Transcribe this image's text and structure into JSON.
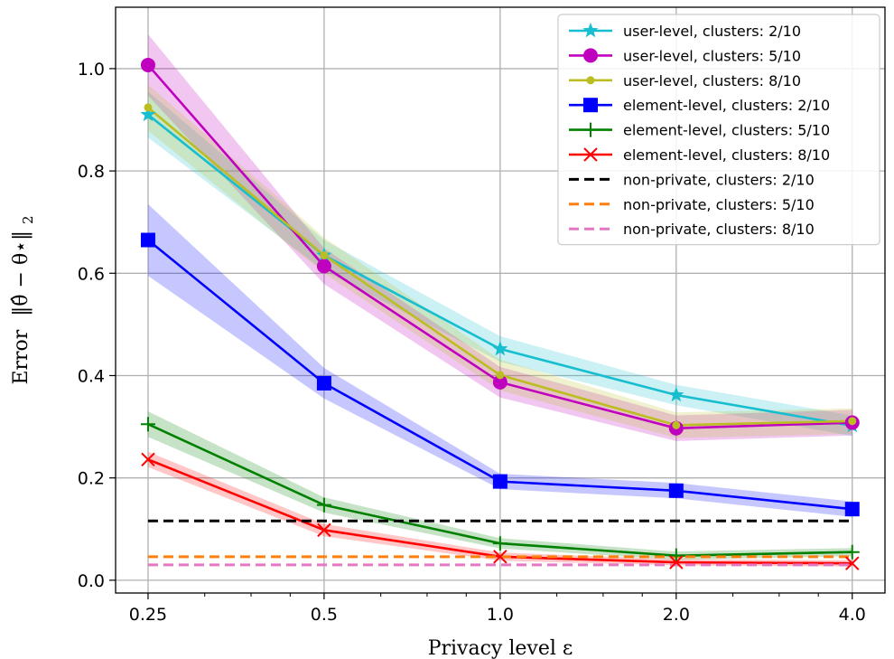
{
  "chart_data": {
    "type": "line",
    "xlabel": "Privacy level ε",
    "ylabel_prefix": "Error",
    "ylabel_formula": "‖θ̂ − θ⋆‖",
    "ylabel_sub": "2",
    "x_scale": "log",
    "x": [
      0.25,
      0.5,
      1.0,
      2.0,
      4.0
    ],
    "x_tick_labels": [
      "0.25",
      "0.5",
      "1.0",
      "2.0",
      "4.0"
    ],
    "xlim": [
      0.22,
      4.55
    ],
    "y_ticks": [
      0.0,
      0.2,
      0.4,
      0.6,
      0.8,
      1.0
    ],
    "y_tick_labels": [
      "0.0",
      "0.2",
      "0.4",
      "0.6",
      "0.8",
      "1.0"
    ],
    "ylim": [
      -0.025,
      1.12
    ],
    "grid": true,
    "legend_position": "top-right",
    "series": [
      {
        "name": "user-level, clusters: 2/10",
        "color": "#17becf",
        "marker": "star",
        "values": [
          0.91,
          0.635,
          0.452,
          0.362,
          0.302
        ],
        "band": [
          0.045,
          0.03,
          0.025,
          0.02,
          0.02
        ]
      },
      {
        "name": "user-level, clusters: 5/10",
        "color": "#bf00bf",
        "marker": "circle",
        "values": [
          1.007,
          0.614,
          0.387,
          0.297,
          0.308
        ],
        "band": [
          0.06,
          0.035,
          0.03,
          0.025,
          0.025
        ]
      },
      {
        "name": "user-level, clusters: 8/10",
        "color": "#bcbd22",
        "marker": "dot",
        "values": [
          0.924,
          0.635,
          0.401,
          0.303,
          0.311
        ],
        "band": [
          0.045,
          0.035,
          0.03,
          0.025,
          0.025
        ]
      },
      {
        "name": "element-level, clusters: 2/10",
        "color": "#0000ff",
        "marker": "square",
        "values": [
          0.665,
          0.385,
          0.193,
          0.175,
          0.139
        ],
        "band": [
          0.07,
          0.03,
          0.015,
          0.015,
          0.015
        ]
      },
      {
        "name": "element-level, clusters: 5/10",
        "color": "#008000",
        "marker": "plus",
        "values": [
          0.305,
          0.147,
          0.072,
          0.048,
          0.055
        ],
        "band": [
          0.025,
          0.015,
          0.01,
          0.008,
          0.008
        ]
      },
      {
        "name": "element-level, clusters: 8/10",
        "color": "#ff0000",
        "marker": "x",
        "values": [
          0.236,
          0.098,
          0.046,
          0.035,
          0.033
        ],
        "band": [
          0.015,
          0.012,
          0.008,
          0.006,
          0.006
        ]
      },
      {
        "name": "non-private, clusters: 2/10",
        "color": "#000000",
        "marker": "dashed",
        "values": [
          0.116,
          0.116,
          0.116,
          0.116,
          0.116
        ]
      },
      {
        "name": "non-private, clusters: 5/10",
        "color": "#ff7f0e",
        "marker": "dashed",
        "values": [
          0.046,
          0.046,
          0.046,
          0.046,
          0.046
        ]
      },
      {
        "name": "non-private, clusters: 8/10",
        "color": "#e377c2",
        "marker": "dashed",
        "values": [
          0.03,
          0.03,
          0.03,
          0.03,
          0.03
        ]
      }
    ]
  }
}
